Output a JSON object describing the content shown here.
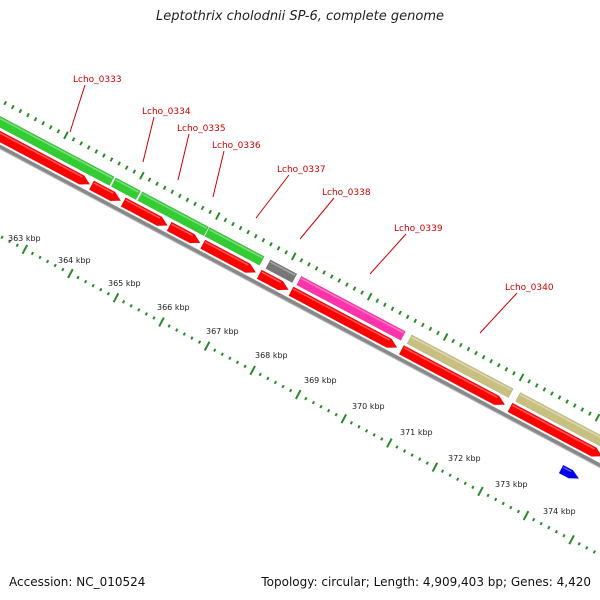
{
  "title": "Leptothrix cholodnii SP-6, complete genome",
  "footer": {
    "accession": "Accession: NC_010524",
    "summary": "Topology: circular; Length: 4,909,403 bp; Genes: 4,420"
  },
  "colors": {
    "cds": "#ff0000",
    "forward_green": "#33cc33",
    "gray": "#777777",
    "pink": "#ff33aa",
    "olive": "#c8c080",
    "blue": "#0000ee",
    "label_red": "#cc0000",
    "tick_green": "#2a8a2a",
    "backbone": "#888888"
  },
  "kbp_labels": [
    "363 kbp",
    "364 kbp",
    "365 kbp",
    "366 kbp",
    "367 kbp",
    "368 kbp",
    "369 kbp",
    "370 kbp",
    "371 kbp",
    "372 kbp",
    "373 kbp",
    "374 kbp"
  ],
  "gene_labels": [
    "Lcho_0333",
    "Lcho_0334",
    "Lcho_0335",
    "Lcho_0336",
    "Lcho_0337",
    "Lcho_0338",
    "Lcho_0339",
    "Lcho_0340"
  ]
}
